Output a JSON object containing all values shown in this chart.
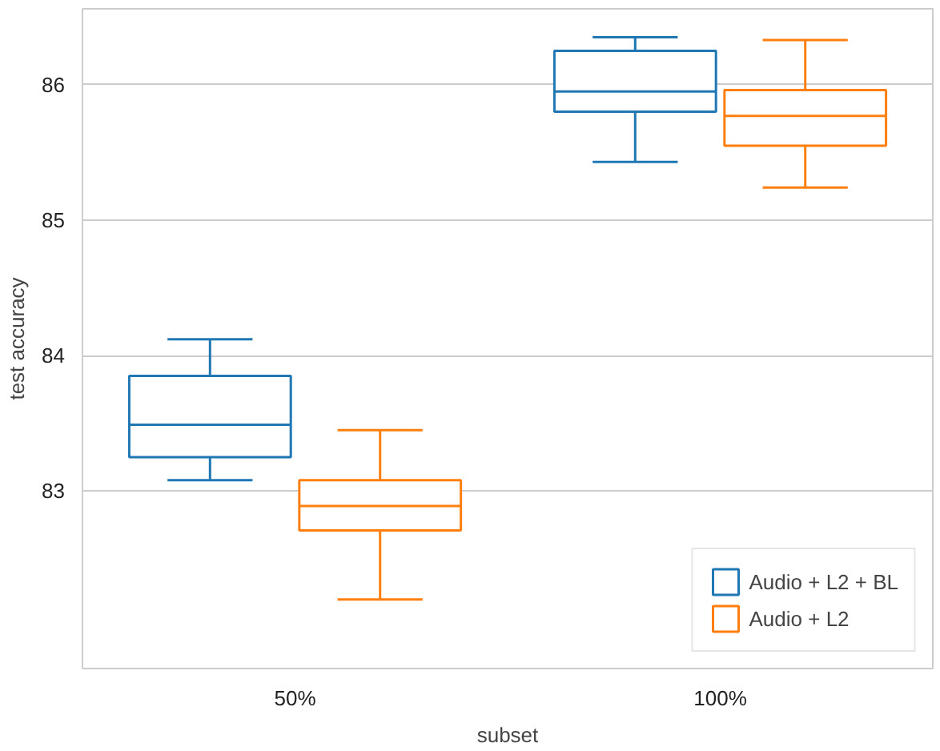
{
  "chart_data": {
    "type": "box",
    "xlabel": "subset",
    "ylabel": "test accuracy",
    "categories": [
      "50%",
      "100%"
    ],
    "series": [
      {
        "name": "Audio + L2 + BL",
        "color": "#1f77b4",
        "boxes": [
          {
            "low": 83.08,
            "q1": 83.25,
            "median": 83.49,
            "q3": 83.85,
            "high": 84.12
          },
          {
            "low": 85.43,
            "q1": 85.8,
            "median": 85.95,
            "q3": 86.25,
            "high": 86.35
          }
        ]
      },
      {
        "name": "Audio + L2",
        "color": "#ff7f0e",
        "boxes": [
          {
            "low": 82.2,
            "q1": 82.71,
            "median": 82.89,
            "q3": 83.08,
            "high": 83.45
          },
          {
            "low": 85.24,
            "q1": 85.55,
            "median": 85.77,
            "q3": 85.96,
            "high": 86.33
          }
        ]
      }
    ],
    "ylim": [
      81.69,
      86.56
    ],
    "yticks": [
      83,
      84,
      85,
      86
    ],
    "grid": "y",
    "legend": "bottom right"
  }
}
